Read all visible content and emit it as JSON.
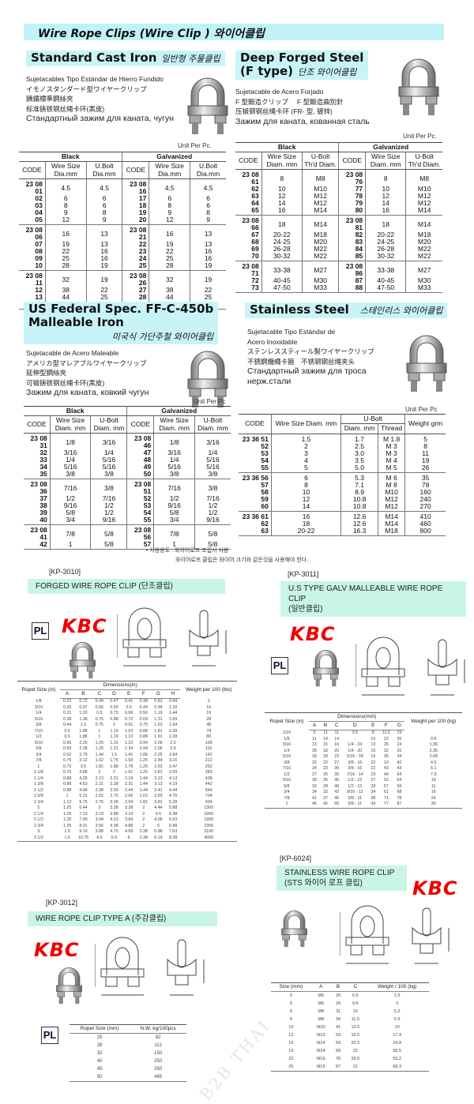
{
  "title": "Wire Rope Clips  (Wire Clip ) 와이어클립",
  "watermark": "B2B THAI",
  "unit_per_pc": "Unit Per Pc.",
  "unit_per_pc2": "Unit Per Pc",
  "standard_cast_iron": {
    "title": "Standard Cast Iron",
    "title_ko": "일반형 주물클립",
    "desc": [
      "Sujetacables Tipo Estándar de Hierro Fundido",
      "イモノスタンダード型ワイヤークリップ",
      "鑄鐵標準鋼絲夾",
      "标准铸铁钢丝绳卡环(黑皮)"
    ],
    "desc_ru": "Стандартный зажим для каната, чугун",
    "table": {
      "groups": [
        "Black",
        "Galvanized"
      ],
      "columns": [
        "CODE",
        "Wire Size Dia.mm",
        "U.Bolt Dia.mm",
        "CODE",
        "Wire Size Dia.mm",
        "U.Bolt Dia.mm"
      ],
      "row_groups": [
        [
          [
            "23 08 01",
            "4.5",
            "4.5",
            "23 08 16",
            "4.5",
            "4.5"
          ],
          [
            "02",
            "6",
            "6",
            "17",
            "6",
            "6"
          ],
          [
            "03",
            "8",
            "6",
            "18",
            "8",
            "6"
          ],
          [
            "04",
            "9",
            "8",
            "19",
            "9",
            "8"
          ],
          [
            "05",
            "12",
            "9",
            "20",
            "12",
            "9"
          ]
        ],
        [
          [
            "23 08 06",
            "16",
            "13",
            "23 08 21",
            "16",
            "13"
          ],
          [
            "07",
            "19",
            "13",
            "22",
            "19",
            "13"
          ],
          [
            "08",
            "22",
            "16",
            "23",
            "22",
            "16"
          ],
          [
            "09",
            "25",
            "16",
            "24",
            "25",
            "16"
          ],
          [
            "10",
            "28",
            "19",
            "25",
            "28",
            "19"
          ]
        ],
        [
          [
            "23 08 11",
            "32",
            "19",
            "23 08 26",
            "32",
            "19"
          ],
          [
            "12",
            "38",
            "22",
            "27",
            "38",
            "22"
          ],
          [
            "13",
            "44",
            "25",
            "28",
            "44",
            "25"
          ],
          [
            "14",
            "50",
            "25",
            "29",
            "50",
            "25"
          ]
        ]
      ]
    }
  },
  "deep_forged": {
    "title": "Deep Forged Steel",
    "title2": "(F type)",
    "title_ko": "단조 와이어클립",
    "desc": [
      "Sujetacable de Acero Forjado",
      "F 型鍛造クリップ　 F 型鍛造曲別針",
      "压锻钢钢丝绳卡环 (FR- 型, 镀锌)"
    ],
    "desc_ru": "Зажим для каната, кованная сталь",
    "table": {
      "groups": [
        "Black",
        "Galvanized"
      ],
      "columns": [
        "CODE",
        "Wire Size Diam. mm",
        "U-Bolt Th'd Diam.",
        "CODE",
        "Wire Size Diam. mm",
        "U-Bolt Th'd Diam."
      ],
      "row_groups": [
        [
          [
            "23 08 61",
            "8",
            "M8",
            "23 08 76",
            "8",
            "M8"
          ],
          [
            "62",
            "10",
            "M10",
            "77",
            "10",
            "M10"
          ],
          [
            "63",
            "12",
            "M12",
            "78",
            "12",
            "M12"
          ],
          [
            "64",
            "14",
            "M12",
            "79",
            "14",
            "M12"
          ],
          [
            "65",
            "16",
            "M14",
            "80",
            "16",
            "M14"
          ]
        ],
        [
          [
            "23 08 66",
            "18",
            "M14",
            "23 08 81",
            "18",
            "M14"
          ],
          [
            "67",
            "20-22",
            "M18",
            "82",
            "20-22",
            "M18"
          ],
          [
            "68",
            "24-25",
            "M20",
            "83",
            "24-25",
            "M20"
          ],
          [
            "69",
            "26-28",
            "M22",
            "84",
            "26-28",
            "M22"
          ],
          [
            "70",
            "30-32",
            "M22",
            "85",
            "30-32",
            "M22"
          ]
        ],
        [
          [
            "23 08 71",
            "33-38",
            "M27",
            "23 08 86",
            "33-38",
            "M27"
          ],
          [
            "72",
            "40-45",
            "M30",
            "87",
            "40-45",
            "M30"
          ],
          [
            "73",
            "47-50",
            "M33",
            "88",
            "47-50",
            "M33"
          ]
        ]
      ]
    }
  },
  "us_federal": {
    "title": "US Federal Spec. FF-C-450b",
    "title2": "Malleable Iron",
    "title_ko": "미국식 가단주철 와이어클립",
    "desc": [
      "Sujetacable de Acero Maleable",
      "アメリカ型マレアブルワイヤークリップ",
      "延伸型鋼絲夾",
      "可锻铸铁钢丝绳卡环(黑皮)"
    ],
    "desc_ru": "Зажим для каната, ковкий чугун",
    "table": {
      "groups": [
        "Black",
        "Galvanized"
      ],
      "columns": [
        "CODE",
        "Wire Size Diam. mm",
        "U-Bolt Diam. mm",
        "CODE",
        "Wire Size Diam. mm",
        "U-Bolt Diam. mm"
      ],
      "row_groups": [
        [
          [
            "23 08 31",
            "1/8",
            "3/16",
            "23 08 46",
            "1/8",
            "3/16"
          ],
          [
            "32",
            "3/16",
            "1/4",
            "47",
            "3/16",
            "1/4"
          ],
          [
            "33",
            "1/4",
            "5/16",
            "48",
            "1/4",
            "5/16"
          ],
          [
            "34",
            "5/16",
            "5/16",
            "49",
            "5/16",
            "5/16"
          ],
          [
            "35",
            "3/8",
            "3/8",
            "50",
            "3/8",
            "3/8"
          ]
        ],
        [
          [
            "23 08 36",
            "7/16",
            "3/8",
            "23 08 51",
            "7/16",
            "3/8"
          ],
          [
            "37",
            "1/2",
            "7/16",
            "52",
            "1/2",
            "7/16"
          ],
          [
            "38",
            "9/16",
            "1/2",
            "53",
            "9/16",
            "1/2"
          ],
          [
            "39",
            "5/8",
            "1/2",
            "54",
            "5/8",
            "1/2"
          ],
          [
            "40",
            "3/4",
            "9/16",
            "55",
            "3/4",
            "9/16"
          ]
        ],
        [
          [
            "23 08 41",
            "7/8",
            "5/8",
            "23 08 56",
            "7/8",
            "5/8"
          ],
          [
            "42",
            "1",
            "5/8",
            "57",
            "1",
            "5/8"
          ]
        ]
      ]
    }
  },
  "stainless": {
    "title": "Stainless Steel",
    "title_ko": "스테인리스 와이어클립",
    "desc": [
      "Sujetacable Tipo Estándar de",
      "Acero Inoxidable",
      "ステンレススティール製ワイヤークリップ",
      "不銹鋼纜繩卡箍　不锈钢钢丝绳夹头"
    ],
    "desc_ru": "Стандартный зажим для троса нерж.стали",
    "table": {
      "columns": [
        "CODE",
        "Wire Size Diam. mm",
        "U-Bolt",
        "Diam. mm",
        "Thread",
        "Weight grm"
      ],
      "row_groups": [
        [
          [
            "23 36 51",
            "1.5",
            "1.7",
            "M 1.8",
            "5"
          ],
          [
            "52",
            "2",
            "2.5",
            "M 3",
            "8"
          ],
          [
            "53",
            "3",
            "3.0",
            "M 3",
            "11"
          ],
          [
            "54",
            "4",
            "3.5",
            "M 4",
            "19"
          ],
          [
            "55",
            "5",
            "5.0",
            "M 5",
            "26"
          ]
        ],
        [
          [
            "23 36 56",
            "6",
            "5.3",
            "M 6",
            "35"
          ],
          [
            "57",
            "8",
            "7.1",
            "M 8",
            "78"
          ],
          [
            "58",
            "10",
            "8.9",
            "M10",
            "160"
          ],
          [
            "59",
            "12",
            "10.8",
            "M12",
            "240"
          ],
          [
            "60",
            "14",
            "10.8",
            "M12",
            "270"
          ]
        ],
        [
          [
            "23 36 61",
            "16",
            "12.6",
            "M14",
            "410"
          ],
          [
            "62",
            "18",
            "12.6",
            "M14",
            "460"
          ],
          [
            "63",
            "20-22",
            "16.3",
            "M18",
            "800"
          ]
        ]
      ]
    }
  },
  "notes": [
    "• 사용용도 : 와이어로프 조립시 사용",
    "와이어로프 클립은 와이어 크기와 같은것을 사용해야 한다."
  ],
  "brand": "KBC",
  "pl_mark": "PL",
  "kp3010": {
    "code": "[KP-3010]",
    "title": "FORGED WIRE ROPE CLIP (단조클립)",
    "table": {
      "col_first": "Ropet Size (in)",
      "group": "Dimensions(in)",
      "col_last": "Weight per 100 (lbs)",
      "sub": [
        "A",
        "B",
        "C",
        "D",
        "E",
        "F",
        "G",
        "H"
      ],
      "rows": [
        [
          "1/8",
          "0.22",
          "0.72",
          "0.44",
          "0.47",
          "0.41",
          "0.38",
          "0.81",
          "0.94",
          "3"
        ],
        [
          "3/16",
          "0.25",
          "0.97",
          "0.56",
          "0.59",
          "0.5",
          "0.44",
          "0.94",
          "1.16",
          "10"
        ],
        [
          "1/4",
          "0.31",
          "1.03",
          "0.5",
          "0.75",
          "0.66",
          "0.56",
          "1.19",
          "1.44",
          "19"
        ],
        [
          "5/16",
          "0.38",
          "1.38",
          "0.75",
          "0.88",
          "0.72",
          "0.69",
          "1.31",
          "1.69",
          "28"
        ],
        [
          "3/8",
          "0.44",
          "1.5",
          "0.75",
          "1",
          "0.91",
          "0.75",
          "1.63",
          "1.94",
          "48"
        ],
        [
          "7/16",
          "0.5",
          "1.88",
          "1",
          "1.19",
          "1.03",
          "0.88",
          "1.81",
          "2.28",
          "78"
        ],
        [
          "1/2",
          "0.5",
          "1.88",
          "1",
          "1.19",
          "1.13",
          "0.88",
          "1.91",
          "2.28",
          "80"
        ],
        [
          "9/16",
          "0.56",
          "2.25",
          "1.25",
          "1.31",
          "1.22",
          "0.94",
          "2.06",
          "2.5",
          "109"
        ],
        [
          "5/8",
          "0.56",
          "2.38",
          "1.25",
          "1.31",
          "1.34",
          "0.94",
          "2.06",
          "2.5",
          "110"
        ],
        [
          "3/4",
          "0.62",
          "2.75",
          "1.44",
          "1.5",
          "1.41",
          "1.06",
          "2.25",
          "2.84",
          "142"
        ],
        [
          "7/8",
          "0.75",
          "3.12",
          "1.62",
          "1.75",
          "1.59",
          "1.25",
          "2.44",
          "3.16",
          "212"
        ],
        [
          "1",
          "0.75",
          "3.5",
          "1.81",
          "1.88",
          "1.78",
          "1.25",
          "2.63",
          "3.47",
          "252"
        ],
        [
          "1 1/8",
          "0.75",
          "3.88",
          "2",
          "2",
          "1.91",
          "1.25",
          "2.81",
          "3.59",
          "283"
        ],
        [
          "1 1/4",
          "0.88",
          "4.25",
          "2.13",
          "2.31",
          "2.19",
          "1.44",
          "3.13",
          "4.13",
          "438"
        ],
        [
          "1 3/8",
          "0.88",
          "4.63",
          "2.31",
          "2.38",
          "2.31",
          "1.44",
          "3.13",
          "4.19",
          "442"
        ],
        [
          "1 1/2",
          "0.88",
          "4.94",
          "2.38",
          "2.59",
          "2.44",
          "1.44",
          "3.41",
          "4.44",
          "544"
        ],
        [
          "1 5/8",
          "1",
          "5.31",
          "2.62",
          "2.75",
          "2.66",
          "1.63",
          "3.63",
          "4.75",
          "704"
        ],
        [
          "1 3/4",
          "1.13",
          "5.75",
          "2.75",
          "3.06",
          "2.94",
          "1.81",
          "3.81",
          "5.28",
          "934"
        ],
        [
          "2",
          "1.25",
          "6.44",
          "3",
          "3.38",
          "3.28",
          "2",
          "4.44",
          "5.88",
          "1300"
        ],
        [
          "2 1/4",
          "1.25",
          "7.13",
          "3.19",
          "3.88",
          "3.19",
          "2",
          "4.5",
          "6.38",
          "1600"
        ],
        [
          "2 1/2",
          "1.25",
          "7.69",
          "3.44",
          "4.13",
          "3.69",
          "2",
          "4.05",
          "6.63",
          "1900"
        ],
        [
          "2 3/4",
          "1.25",
          "8.31",
          "3.56",
          "4.38",
          "4.88",
          "2",
          "5",
          "6.88",
          "2300"
        ],
        [
          "3",
          "1.5",
          "9.19",
          "3.88",
          "4.75",
          "4.69",
          "2.38",
          "5.88",
          "7.63",
          "3100"
        ],
        [
          "3 1/2",
          "1.5",
          "10.75",
          "4.5",
          "5.5",
          "6",
          "2.38",
          "6.19",
          "8.38",
          "4000"
        ]
      ]
    }
  },
  "kp3011": {
    "code": "[KP-3011]",
    "title": "U.S TYPE GALV MALLEABLE WIRE ROPE CLIP",
    "title2": "(일반클립)",
    "table": {
      "col_first": "Ropet Size (in)",
      "group": "Dimensions(mm)",
      "col_last": "Weight per 100 (kg)",
      "sub": [
        "A",
        "B",
        "C",
        "D",
        "E",
        "F",
        "G"
      ],
      "rows": [
        [
          "1/16",
          "9",
          "11",
          "11",
          "3.5",
          "8",
          "11.5",
          "19",
          ""
        ],
        [
          "1/8",
          "11",
          "14",
          "14",
          "-",
          "10",
          "22",
          "20",
          "0.6"
        ],
        [
          "3/16",
          "13",
          "15",
          "16",
          "1/4 - 24",
          "13",
          "26",
          "24",
          "1.36"
        ],
        [
          "1/4",
          "28",
          "18",
          "20",
          "1/4 - 20",
          "15",
          "32",
          "31",
          "2.36"
        ],
        [
          "5/16",
          "18",
          "20",
          "22",
          "5/16 - 18",
          "16",
          "35",
          "34",
          "2.68"
        ],
        [
          "3/8",
          "22",
          "22",
          "27",
          "3/8 - 16",
          "22",
          "10",
          "42",
          "4.5"
        ],
        [
          "7/16",
          "24",
          "23",
          "30",
          "3/8 - 16",
          "22",
          "43",
          "43",
          "5.1"
        ],
        [
          "1/2",
          "27",
          "26",
          "35",
          "7/16 - 14",
          "23",
          "49",
          "54",
          "7.9"
        ],
        [
          "9/16",
          "30",
          "26",
          "40",
          "1/2 - 13",
          "27",
          "52",
          "54",
          "10"
        ],
        [
          "5/8",
          "33",
          "28",
          "40",
          "1/2 - 13",
          "28",
          "57",
          "59",
          "11"
        ],
        [
          "3/4",
          "34",
          "32",
          "42",
          "9/16 - 12",
          "34",
          "61",
          "68",
          "16"
        ],
        [
          "7/8",
          "41",
          "37",
          "46",
          "5/8 - 11",
          "38",
          "71",
          "78",
          "24"
        ],
        [
          "1",
          "45",
          "42",
          "55",
          "5/8 - 11",
          "43",
          "77",
          "87",
          "30"
        ]
      ]
    }
  },
  "kp3012": {
    "code": "[KP-3012]",
    "title": "WIRE ROPE CLIP TYPE A (주강클립)",
    "table": {
      "columns": [
        "Ropet Size (mm)",
        "N.W. kg/100pcs"
      ],
      "rows": [
        [
          "25",
          "82"
        ],
        [
          "28",
          "112"
        ],
        [
          "32",
          "150"
        ],
        [
          "40",
          "250"
        ],
        [
          "45",
          "350"
        ],
        [
          "50",
          "465"
        ]
      ]
    }
  },
  "kp6024": {
    "code": "[KP-6024]",
    "title": "STAINLESS WIRE ROPE CLIP",
    "title2": "(STS 와이어 로프 클립)",
    "table": {
      "columns": [
        "Size (mm)",
        "A",
        "B",
        "C",
        "Weight / 100 (kg)"
      ],
      "rows": [
        [
          "3",
          "M5",
          "20",
          "6.5",
          "1.5"
        ],
        [
          "5",
          "M6",
          "24",
          "9.5",
          "3"
        ],
        [
          "6",
          "M8",
          "31",
          "10",
          "5.2"
        ],
        [
          "8",
          "M8",
          "34",
          "11.5",
          "5.9"
        ],
        [
          "10",
          "M10",
          "41",
          "13.5",
          "10"
        ],
        [
          "12",
          "M12",
          "53",
          "16.5",
          "17.4"
        ],
        [
          "16",
          "M14",
          "59",
          "20.5",
          "24.8"
        ],
        [
          "19",
          "M14",
          "68",
          "22",
          "36.5"
        ],
        [
          "22",
          "M16",
          "78",
          "26.5",
          "53.2"
        ],
        [
          "25",
          "M16",
          "87",
          "31",
          "68.3"
        ]
      ]
    }
  },
  "colors": {
    "header_cyan": "#c8f4f8",
    "banner_mint": "#c9f5e6",
    "brand_red": "#e00000"
  }
}
